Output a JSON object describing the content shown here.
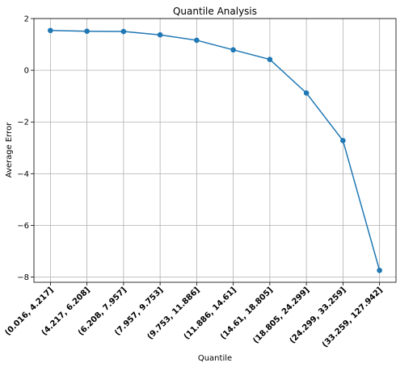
{
  "chart_data": {
    "type": "line",
    "title": "Quantile Analysis",
    "xlabel": "Quantile",
    "ylabel": "Average Error",
    "categories": [
      "(0.016, 4.217]",
      "(4.217, 6.208]",
      "(6.208, 7.957]",
      "(7.957, 9.753]",
      "(9.753, 11.886]",
      "(11.886, 14.61]",
      "(14.61, 18.805]",
      "(18.805, 24.299]",
      "(24.299, 33.259]",
      "(33.259, 127.942]"
    ],
    "series": [
      {
        "values": [
          1.54,
          1.51,
          1.5,
          1.37,
          1.16,
          0.79,
          0.42,
          -0.88,
          -2.72,
          -7.74
        ],
        "color": "#1f77b4",
        "marker": "circle"
      }
    ],
    "ylim": [
      -8.2,
      2.0
    ],
    "yticks": [
      2,
      0,
      -2,
      -4,
      -6,
      -8
    ],
    "ytick_labels": [
      "2",
      "0",
      "−2",
      "−4",
      "−6",
      "−8"
    ],
    "grid": true,
    "legend": "none"
  }
}
